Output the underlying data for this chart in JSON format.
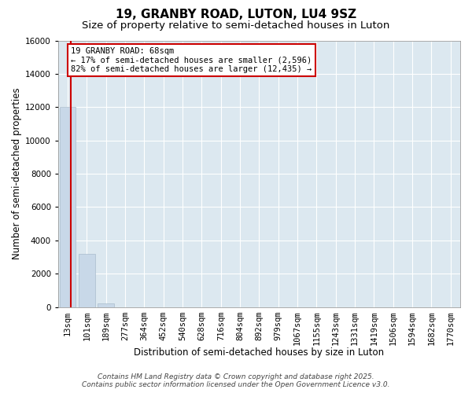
{
  "title1": "19, GRANBY ROAD, LUTON, LU4 9SZ",
  "title2": "Size of property relative to semi-detached houses in Luton",
  "xlabel": "Distribution of semi-detached houses by size in Luton",
  "ylabel": "Number of semi-detached properties",
  "categories": [
    "13sqm",
    "101sqm",
    "189sqm",
    "277sqm",
    "364sqm",
    "452sqm",
    "540sqm",
    "628sqm",
    "716sqm",
    "804sqm",
    "892sqm",
    "979sqm",
    "1067sqm",
    "1155sqm",
    "1243sqm",
    "1331sqm",
    "1419sqm",
    "1506sqm",
    "1594sqm",
    "1682sqm",
    "1770sqm"
  ],
  "values": [
    12000,
    3200,
    230,
    0,
    0,
    0,
    0,
    0,
    0,
    0,
    0,
    0,
    0,
    0,
    0,
    0,
    0,
    0,
    0,
    0,
    0
  ],
  "bar_color": "#c8d8e8",
  "bar_edge_color": "#aabccc",
  "vline_color": "#cc0000",
  "vline_x": 0.15,
  "annotation_text": "19 GRANBY ROAD: 68sqm\n← 17% of semi-detached houses are smaller (2,596)\n82% of semi-detached houses are larger (12,435) →",
  "annotation_box_facecolor": "#ffffff",
  "annotation_box_edgecolor": "#cc0000",
  "ylim": [
    0,
    16000
  ],
  "yticks": [
    0,
    2000,
    4000,
    6000,
    8000,
    10000,
    12000,
    14000,
    16000
  ],
  "bg_color": "#dce8f0",
  "grid_color": "#ffffff",
  "footer1": "Contains HM Land Registry data © Crown copyright and database right 2025.",
  "footer2": "Contains public sector information licensed under the Open Government Licence v3.0.",
  "title1_fontsize": 11,
  "title2_fontsize": 9.5,
  "xlabel_fontsize": 8.5,
  "ylabel_fontsize": 8.5,
  "tick_fontsize": 7.5,
  "annot_fontsize": 7.5,
  "footer_fontsize": 6.5
}
